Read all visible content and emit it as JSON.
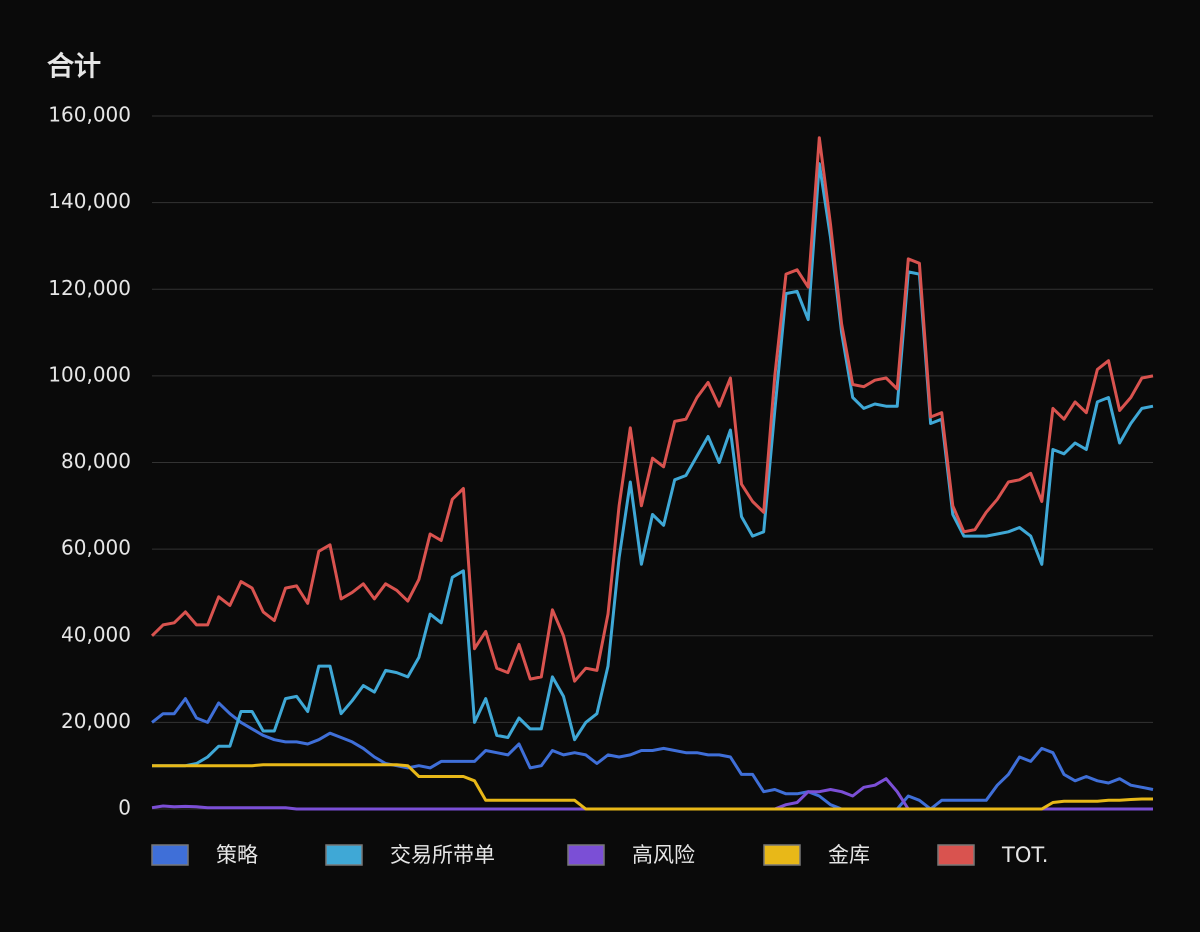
{
  "chart_data": {
    "type": "line",
    "title": "合计",
    "ylim": [
      0,
      160000
    ],
    "yticks": [
      0,
      {
        "value": 20000,
        "label": "20,000"
      },
      {
        "value": 40000,
        "label": "40,000"
      },
      {
        "value": 60000,
        "label": "60,000"
      },
      {
        "value": 80000,
        "label": "80,000"
      },
      {
        "value": 100000,
        "label": "100,000"
      },
      {
        "value": 120000,
        "label": "120,000"
      },
      {
        "value": 140000,
        "label": "140,000"
      },
      {
        "value": 160000,
        "label": "160,000"
      }
    ],
    "grid": true,
    "legend": "bottom",
    "series": [
      {
        "name": "策略",
        "color": "#3f6fd8",
        "values": [
          20000,
          22000,
          22000,
          25500,
          21000,
          20000,
          24500,
          22000,
          20000,
          18500,
          17000,
          16000,
          15500,
          15500,
          15000,
          16000,
          17500,
          16500,
          15500,
          14000,
          12000,
          10500,
          10000,
          9500,
          10000,
          9500,
          11000,
          11000,
          11000,
          11000,
          13500,
          13000,
          12500,
          15000,
          9500,
          10000,
          13500,
          12500,
          13000,
          12500,
          10500,
          12500,
          12000,
          12500,
          13500,
          13500,
          14000,
          13500,
          13000,
          13000,
          12500,
          12500,
          12000,
          8000,
          8000,
          4000,
          4500,
          3500,
          3500,
          4000,
          3000,
          1000,
          0,
          0,
          0,
          0,
          0,
          0,
          3000,
          2000,
          0,
          2000,
          2000,
          2000,
          2000,
          2000,
          5500,
          8000,
          12000,
          11000,
          14000,
          13000,
          8000,
          6500,
          7500,
          6500,
          6000,
          7000,
          5500,
          5000,
          4500
        ]
      },
      {
        "name": "交易所带单",
        "color": "#3fa8d6",
        "values": [
          10000,
          10000,
          10000,
          10000,
          10500,
          12000,
          14500,
          14500,
          22500,
          22500,
          18000,
          18000,
          25500,
          26000,
          22500,
          33000,
          33000,
          22000,
          25000,
          28500,
          27000,
          32000,
          31500,
          30500,
          35000,
          45000,
          43000,
          53500,
          55000,
          20000,
          25500,
          17000,
          16500,
          21000,
          18500,
          18500,
          30500,
          26000,
          16000,
          20000,
          22000,
          33000,
          58000,
          75500,
          56500,
          68000,
          65500,
          76000,
          77000,
          81500,
          86000,
          80000,
          87500,
          67500,
          63000,
          64000,
          92000,
          119000,
          119500,
          113000,
          149000,
          132000,
          110000,
          95000,
          92500,
          93500,
          93000,
          93000,
          124000,
          123500,
          89000,
          90000,
          68000,
          63000,
          63000,
          63000,
          63500,
          64000,
          65000,
          63000,
          56500,
          83000,
          82000,
          84500,
          83000,
          94000,
          95000,
          84500,
          89000,
          92500,
          93000
        ]
      },
      {
        "name": "高风险",
        "color": "#7b4fd6",
        "values": [
          300,
          700,
          500,
          600,
          500,
          300,
          300,
          300,
          300,
          300,
          300,
          300,
          300,
          0,
          0,
          0,
          0,
          0,
          0,
          0,
          0,
          0,
          0,
          0,
          0,
          0,
          0,
          0,
          0,
          0,
          0,
          0,
          0,
          0,
          0,
          0,
          0,
          0,
          0,
          0,
          0,
          0,
          0,
          0,
          0,
          0,
          0,
          0,
          0,
          0,
          0,
          0,
          0,
          0,
          0,
          0,
          0,
          1000,
          1500,
          4000,
          4000,
          4500,
          4000,
          3000,
          5000,
          5500,
          7000,
          4000,
          0,
          0,
          0,
          0,
          0,
          0,
          0,
          0,
          0,
          0,
          0,
          0,
          0,
          0,
          0,
          0,
          0,
          0,
          0,
          0,
          0,
          0,
          0
        ]
      },
      {
        "name": "金库",
        "color": "#e8b818",
        "values": [
          10000,
          10000,
          10000,
          10000,
          10000,
          10000,
          10000,
          10000,
          10000,
          10000,
          10200,
          10200,
          10200,
          10200,
          10200,
          10200,
          10200,
          10200,
          10200,
          10200,
          10200,
          10200,
          10200,
          10000,
          7500,
          7500,
          7500,
          7500,
          7500,
          6500,
          2000,
          2000,
          2000,
          2000,
          2000,
          2000,
          2000,
          2000,
          2000,
          0,
          0,
          0,
          0,
          0,
          0,
          0,
          0,
          0,
          0,
          0,
          0,
          0,
          0,
          0,
          0,
          0,
          0,
          0,
          0,
          0,
          0,
          0,
          0,
          0,
          0,
          0,
          0,
          0,
          0,
          0,
          0,
          0,
          0,
          0,
          0,
          0,
          0,
          0,
          0,
          0,
          0,
          1500,
          1800,
          1800,
          1800,
          1800,
          2000,
          2000,
          2200,
          2300,
          2300
        ]
      },
      {
        "name": "TOT.",
        "color": "#d9534f",
        "values": [
          40000,
          42500,
          43000,
          45500,
          42500,
          42500,
          49000,
          47000,
          52500,
          51000,
          45500,
          43500,
          51000,
          51500,
          47500,
          59500,
          61000,
          48500,
          50000,
          52000,
          48500,
          52000,
          50500,
          48000,
          53000,
          63500,
          62000,
          71500,
          74000,
          37000,
          41000,
          32500,
          31500,
          38000,
          30000,
          30500,
          46000,
          40000,
          29500,
          32500,
          32000,
          45000,
          70000,
          88000,
          70000,
          81000,
          79000,
          89500,
          90000,
          95000,
          98500,
          93000,
          99500,
          75000,
          71000,
          68500,
          100000,
          123500,
          124500,
          120500,
          155000,
          135000,
          112000,
          98000,
          97500,
          99000,
          99500,
          97000,
          127000,
          126000,
          90500,
          91500,
          70000,
          64000,
          64500,
          68500,
          71500,
          75500,
          76000,
          77500,
          71000,
          92500,
          90000,
          94000,
          91500,
          101500,
          103500,
          92000,
          95000,
          99500,
          100000
        ]
      }
    ]
  }
}
